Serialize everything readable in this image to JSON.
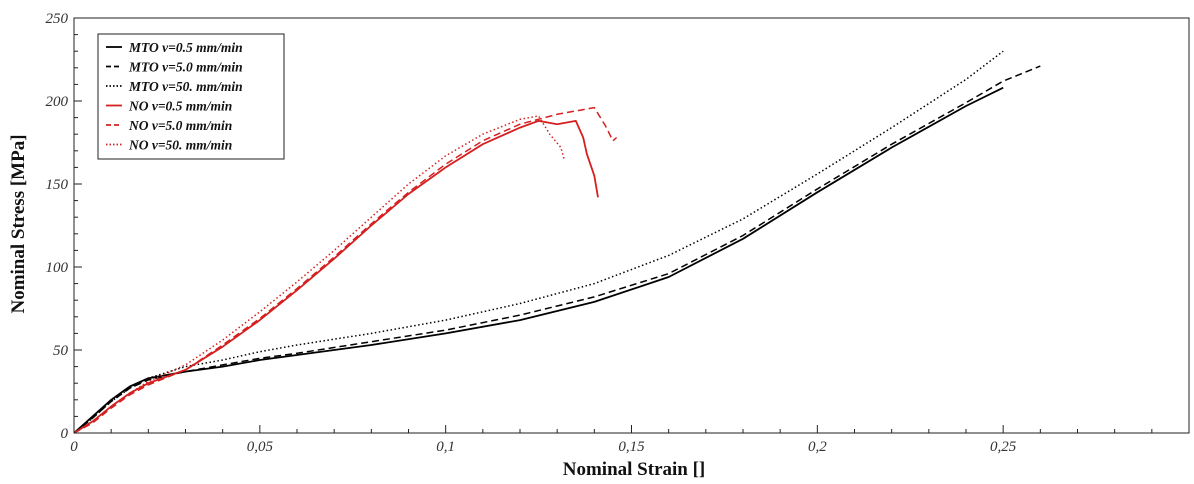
{
  "chart_data": {
    "type": "line",
    "title": "",
    "xlabel": "Nominal Strain []",
    "ylabel": "Nominal Stress [MPa]",
    "xlim": [
      0,
      0.3
    ],
    "ylim": [
      0,
      250
    ],
    "xticks": [
      0,
      0.05,
      0.1,
      0.15,
      0.2,
      0.25
    ],
    "xtick_labels": [
      "0",
      "0,05",
      "0,1",
      "0,15",
      "0,2",
      "0,25"
    ],
    "yticks": [
      0,
      50,
      100,
      150,
      200,
      250
    ],
    "ytick_labels": [
      "0",
      "50",
      "100",
      "150",
      "200",
      "250"
    ],
    "grid": false,
    "legend_position": "top-left",
    "series": [
      {
        "name": "MTO v=0.5 mm/min",
        "color": "#000000",
        "dash": "solid",
        "x": [
          0,
          0.005,
          0.01,
          0.015,
          0.02,
          0.03,
          0.04,
          0.05,
          0.06,
          0.08,
          0.1,
          0.12,
          0.14,
          0.16,
          0.18,
          0.2,
          0.22,
          0.24,
          0.25
        ],
        "y": [
          0,
          10,
          20,
          28,
          33,
          37,
          40,
          44,
          47,
          53,
          60,
          68,
          79,
          94,
          117,
          145,
          172,
          197,
          208
        ]
      },
      {
        "name": "MTO v=5.0 mm/min",
        "color": "#000000",
        "dash": "dashed",
        "x": [
          0,
          0.005,
          0.01,
          0.015,
          0.02,
          0.03,
          0.04,
          0.05,
          0.06,
          0.08,
          0.1,
          0.12,
          0.14,
          0.16,
          0.18,
          0.2,
          0.22,
          0.24,
          0.25,
          0.26
        ],
        "y": [
          0,
          9,
          19,
          27,
          32,
          37,
          41,
          45,
          48,
          55,
          62,
          71,
          82,
          96,
          119,
          147,
          174,
          199,
          212,
          221
        ]
      },
      {
        "name": "MTO v=50. mm/min",
        "color": "#000000",
        "dash": "dotted",
        "x": [
          0,
          0.005,
          0.01,
          0.015,
          0.02,
          0.03,
          0.04,
          0.05,
          0.06,
          0.08,
          0.1,
          0.12,
          0.14,
          0.16,
          0.18,
          0.2,
          0.22,
          0.24,
          0.25
        ],
        "y": [
          0,
          9,
          19,
          27,
          33,
          40,
          44,
          49,
          53,
          60,
          68,
          78,
          90,
          107,
          129,
          156,
          184,
          213,
          230
        ]
      },
      {
        "name": "NO v=0.5 mm/min",
        "color": "#d42020",
        "dash": "solid",
        "x": [
          0,
          0.005,
          0.01,
          0.015,
          0.02,
          0.03,
          0.04,
          0.05,
          0.06,
          0.07,
          0.08,
          0.09,
          0.1,
          0.11,
          0.12,
          0.125,
          0.13,
          0.135,
          0.137,
          0.138,
          0.14,
          0.141
        ],
        "y": [
          0,
          7,
          16,
          24,
          30,
          38,
          52,
          68,
          86,
          105,
          125,
          144,
          160,
          174,
          184,
          188,
          186,
          188,
          178,
          168,
          155,
          142
        ]
      },
      {
        "name": "NO v=5.0 mm/min",
        "color": "#d42020",
        "dash": "dashed",
        "x": [
          0,
          0.005,
          0.01,
          0.015,
          0.02,
          0.03,
          0.04,
          0.05,
          0.06,
          0.07,
          0.08,
          0.09,
          0.1,
          0.11,
          0.12,
          0.13,
          0.14,
          0.143,
          0.145,
          0.146
        ],
        "y": [
          0,
          6,
          15,
          23,
          29,
          38,
          53,
          69,
          87,
          106,
          126,
          145,
          162,
          176,
          186,
          192,
          196,
          185,
          176,
          178
        ]
      },
      {
        "name": "NO v=50. mm/min",
        "color": "#d42020",
        "dash": "dotted",
        "x": [
          0,
          0.005,
          0.01,
          0.015,
          0.02,
          0.03,
          0.04,
          0.05,
          0.06,
          0.07,
          0.08,
          0.09,
          0.1,
          0.11,
          0.12,
          0.125,
          0.128,
          0.131,
          0.132
        ],
        "y": [
          0,
          7,
          16,
          24,
          31,
          41,
          56,
          73,
          91,
          110,
          130,
          150,
          167,
          180,
          189,
          191,
          180,
          172,
          164
        ]
      }
    ]
  }
}
